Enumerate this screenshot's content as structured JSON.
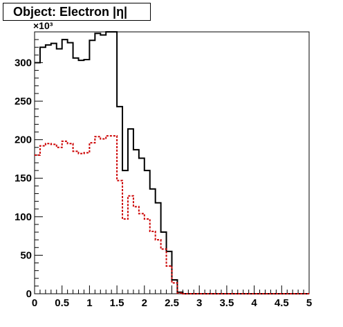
{
  "chart_data": {
    "type": "histogram",
    "title": "Object: Electron |η|",
    "xlabel": "",
    "ylabel": "",
    "xlim": [
      0,
      5
    ],
    "ylim": [
      0,
      340000
    ],
    "y_scale_label": "×10³",
    "x_ticks": [
      "0",
      "0.5",
      "1",
      "1.5",
      "2",
      "2.5",
      "3",
      "3.5",
      "4",
      "4.5",
      "5"
    ],
    "y_ticks": [
      "0",
      "50",
      "100",
      "150",
      "200",
      "250",
      "300"
    ],
    "bin_width": 0.1,
    "grid": false,
    "series": [
      {
        "color": "#000000",
        "style": "solid",
        "values": [
          300000,
          320000,
          323000,
          325000,
          318000,
          330000,
          326000,
          306000,
          303000,
          304000,
          329000,
          338000,
          336000,
          340000,
          340000,
          243000,
          160000,
          214000,
          187000,
          176000,
          160000,
          136000,
          118000,
          80000,
          55000,
          18000,
          2000,
          0,
          0,
          0,
          0,
          0,
          0,
          0,
          0,
          0,
          0,
          0,
          0,
          0,
          0,
          0,
          0,
          0,
          0,
          0,
          0,
          0,
          0,
          0
        ]
      },
      {
        "color": "#cc0000",
        "style": "dashed",
        "values": [
          180000,
          192000,
          195000,
          194000,
          190000,
          198000,
          195000,
          185000,
          182000,
          183000,
          196000,
          204000,
          201000,
          205000,
          205000,
          147000,
          97000,
          127000,
          113000,
          104000,
          97000,
          81000,
          70000,
          58000,
          36000,
          14000,
          1000,
          0,
          0,
          0,
          0,
          0,
          0,
          0,
          0,
          0,
          0,
          0,
          0,
          0,
          0,
          0,
          0,
          0,
          0,
          0,
          0,
          0,
          0,
          0
        ]
      }
    ]
  }
}
